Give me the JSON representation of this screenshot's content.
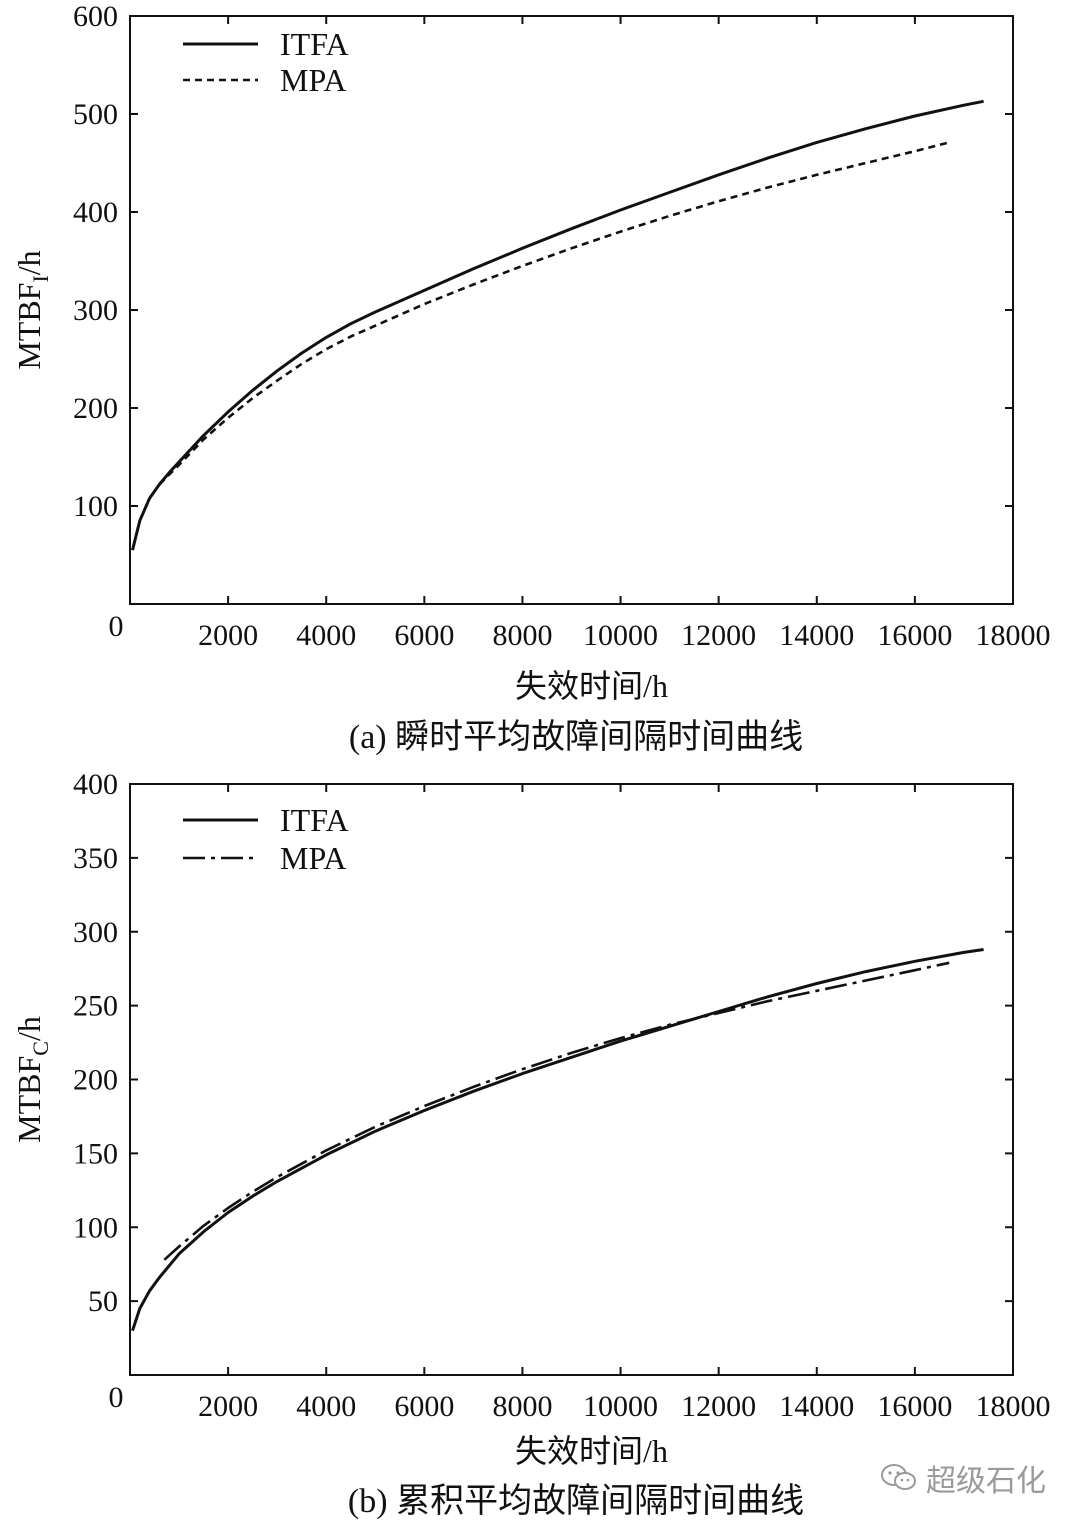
{
  "chart_data": [
    {
      "type": "line",
      "caption": "(a) 瞬时平均故障间隔时间曲线",
      "xlabel": "失效时间/h",
      "ylabel": "MTBF",
      "ylabel_sub": "I",
      "ylabel_unit": "/h",
      "xlim": [
        0,
        18000
      ],
      "ylim": [
        0,
        600
      ],
      "xticks": [
        "0",
        "2000",
        "4000",
        "6000",
        "8000",
        "10000",
        "12000",
        "14000",
        "16000",
        "18000"
      ],
      "yticks": [
        "100",
        "200",
        "300",
        "400",
        "500",
        "600"
      ],
      "legend_position": "top-left",
      "series": [
        {
          "name": "ITFA",
          "style": "solid",
          "x": [
            50,
            200,
            400,
            600,
            800,
            1000,
            1500,
            2000,
            2500,
            3000,
            3500,
            4000,
            4500,
            5000,
            6000,
            7000,
            8000,
            9000,
            10000,
            11000,
            12000,
            13000,
            14000,
            15000,
            16000,
            17000,
            17400
          ],
          "y": [
            55,
            85,
            108,
            122,
            134,
            145,
            172,
            196,
            218,
            238,
            256,
            272,
            286,
            298,
            320,
            342,
            363,
            383,
            402,
            420,
            438,
            455,
            471,
            485,
            498,
            509,
            513
          ]
        },
        {
          "name": "MPA",
          "style": "dashed",
          "x": [
            600,
            800,
            1000,
            1500,
            2000,
            2500,
            3000,
            3500,
            4000,
            4500,
            5000,
            6000,
            7000,
            8000,
            9000,
            10000,
            11000,
            12000,
            13000,
            14000,
            15000,
            16000,
            16700
          ],
          "y": [
            122,
            132,
            142,
            168,
            190,
            210,
            228,
            245,
            260,
            273,
            284,
            306,
            326,
            345,
            363,
            380,
            396,
            411,
            425,
            438,
            450,
            462,
            471
          ]
        }
      ]
    },
    {
      "type": "line",
      "caption": "(b) 累积平均故障间隔时间曲线",
      "xlabel": "失效时间/h",
      "ylabel": "MTBF",
      "ylabel_sub": "C",
      "ylabel_unit": "/h",
      "xlim": [
        0,
        18000
      ],
      "ylim": [
        0,
        400
      ],
      "xticks": [
        "0",
        "2000",
        "4000",
        "6000",
        "8000",
        "10000",
        "12000",
        "14000",
        "16000",
        "18000"
      ],
      "yticks": [
        "50",
        "100",
        "150",
        "200",
        "250",
        "300",
        "350",
        "400"
      ],
      "legend_position": "top-left",
      "series": [
        {
          "name": "ITFA",
          "style": "solid",
          "x": [
            50,
            200,
            400,
            600,
            800,
            1000,
            1500,
            2000,
            2500,
            3000,
            4000,
            5000,
            6000,
            7000,
            8000,
            9000,
            10000,
            11000,
            12000,
            13000,
            14000,
            15000,
            16000,
            17000,
            17400
          ],
          "y": [
            30,
            45,
            57,
            66,
            74,
            82,
            97,
            110,
            121,
            131,
            149,
            165,
            179,
            192,
            204,
            215,
            226,
            236,
            246,
            256,
            265,
            273,
            280,
            286,
            288
          ]
        },
        {
          "name": "MPA",
          "style": "dashdot",
          "x": [
            700,
            1000,
            1500,
            2000,
            2500,
            3000,
            4000,
            5000,
            6000,
            7000,
            8000,
            9000,
            10000,
            11000,
            12000,
            13000,
            14000,
            15000,
            16000,
            16700
          ],
          "y": [
            78,
            87,
            101,
            113,
            124,
            134,
            152,
            168,
            182,
            195,
            207,
            218,
            228,
            237,
            245,
            253,
            260,
            267,
            274,
            279
          ]
        }
      ]
    }
  ],
  "watermark": {
    "text": "超级石化",
    "icon": "wechat-icon"
  }
}
